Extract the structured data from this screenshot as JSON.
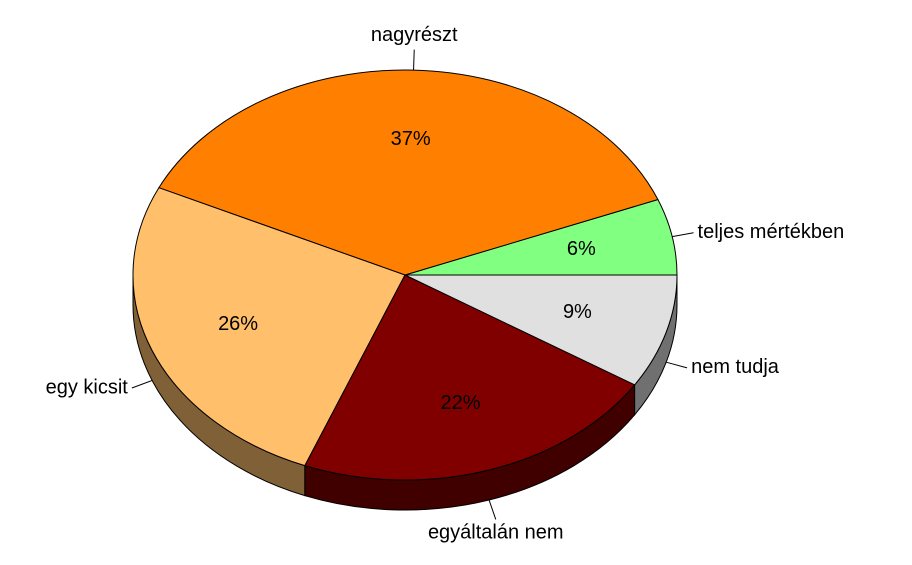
{
  "chart_data": {
    "type": "pie",
    "categories": [
      "teljes mértékben",
      "nagyrészt",
      "egy kicsit",
      "egyáltalán nem",
      "nem tudja"
    ],
    "values": [
      6,
      37,
      26,
      22,
      9
    ],
    "value_labels": [
      "6%",
      "37%",
      "26%",
      "22%",
      "9%"
    ],
    "colors": [
      "#80ff80",
      "#ff8000",
      "#ffbf6b",
      "#800000",
      "#e0e0e0"
    ]
  }
}
